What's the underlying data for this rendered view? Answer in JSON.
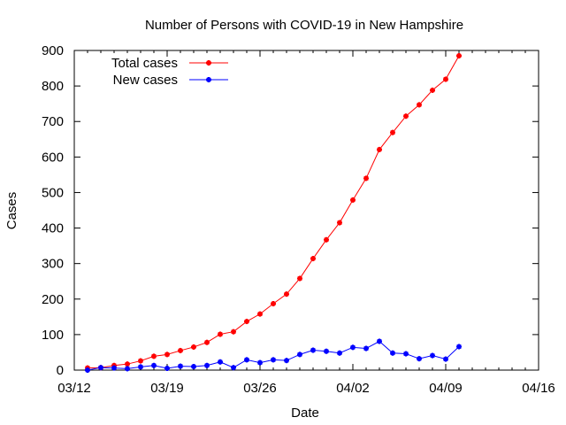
{
  "chart_data": {
    "type": "line",
    "title": "Number of Persons with COVID-19 in New Hampshire",
    "xlabel": "Date",
    "ylabel": "Cases",
    "x_range": [
      "03/12",
      "04/16"
    ],
    "ylim": [
      0,
      900
    ],
    "x_ticks": [
      "03/12",
      "03/19",
      "03/26",
      "04/02",
      "04/09",
      "04/16"
    ],
    "y_ticks": [
      0,
      100,
      200,
      300,
      400,
      500,
      600,
      700,
      800,
      900
    ],
    "legend_position": "top-left",
    "grid": false,
    "dates": [
      "03/13",
      "03/14",
      "03/15",
      "03/16",
      "03/17",
      "03/18",
      "03/19",
      "03/20",
      "03/21",
      "03/22",
      "03/23",
      "03/24",
      "03/25",
      "03/26",
      "03/27",
      "03/28",
      "03/29",
      "03/30",
      "03/31",
      "04/01",
      "04/02",
      "04/03",
      "04/04",
      "04/05",
      "04/06",
      "04/07",
      "04/08",
      "04/09",
      "04/10"
    ],
    "series": [
      {
        "name": "Total cases",
        "color": "#ff0000",
        "values": [
          6,
          7,
          13,
          17,
          26,
          39,
          44,
          55,
          65,
          78,
          101,
          108,
          137,
          158,
          187,
          214,
          258,
          314,
          367,
          415,
          479,
          540,
          621,
          669,
          715,
          747,
          788,
          819,
          885
        ]
      },
      {
        "name": "New cases",
        "color": "#0000ff",
        "values": [
          0,
          7,
          6,
          4,
          9,
          13,
          5,
          11,
          10,
          13,
          23,
          7,
          29,
          21,
          29,
          27,
          44,
          56,
          53,
          48,
          64,
          61,
          81,
          48,
          46,
          32,
          41,
          31,
          66
        ]
      }
    ]
  }
}
